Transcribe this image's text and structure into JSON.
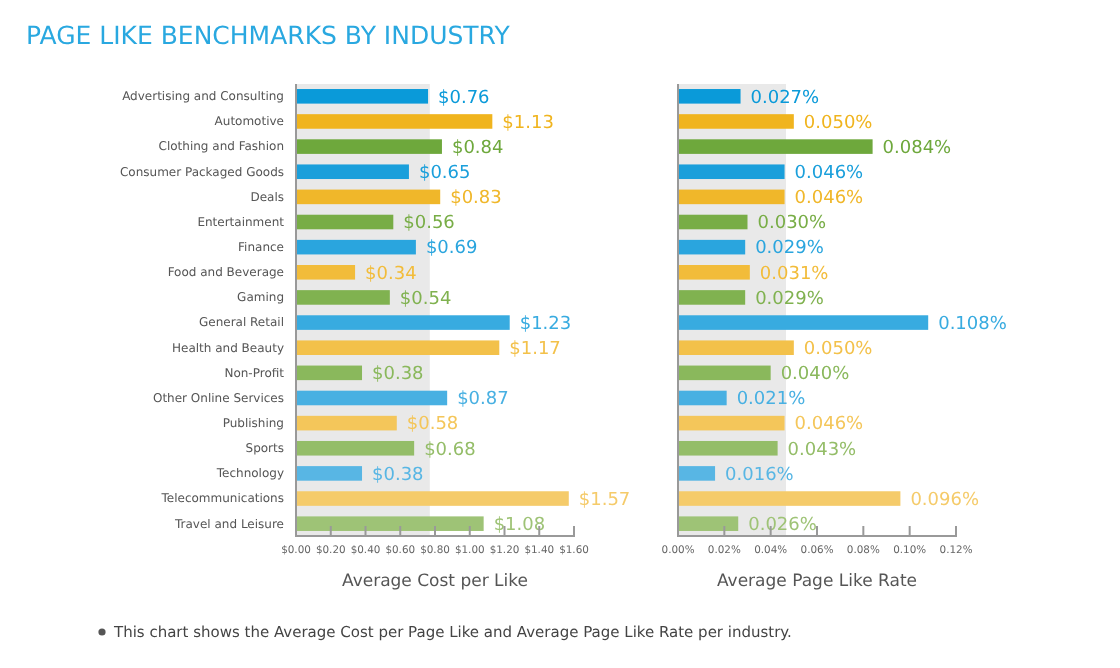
{
  "chart_data": [
    {
      "type": "bar",
      "orientation": "horizontal",
      "title": "PAGE LIKE BENCHMARKS BY INDUSTRY",
      "xlabel": "Average Cost per Like",
      "categories": [
        "Advertising and Consulting",
        "Automotive",
        "Clothing and Fashion",
        "Consumer Packaged Goods",
        "Deals",
        "Entertainment",
        "Finance",
        "Food and Beverage",
        "Gaming",
        "General Retail",
        "Health and Beauty",
        "Non-Profit",
        "Other Online Services",
        "Publishing",
        "Sports",
        "Technology",
        "Telecommunications",
        "Travel and Leisure"
      ],
      "values": [
        0.76,
        1.13,
        0.84,
        0.65,
        0.83,
        0.56,
        0.69,
        0.34,
        0.54,
        1.23,
        1.17,
        0.38,
        0.87,
        0.58,
        0.68,
        0.38,
        1.57,
        1.08
      ],
      "value_labels": [
        "$0.76",
        "$1.13",
        "$0.84",
        "$0.65",
        "$0.83",
        "$0.56",
        "$0.69",
        "$0.34",
        "$0.54",
        "$1.23",
        "$1.17",
        "$0.38",
        "$0.87",
        "$0.58",
        "$0.68",
        "$0.38",
        "$1.57",
        "$1.08"
      ],
      "colors": [
        "#0a9ad9",
        "#f0b41e",
        "#6ea83c",
        "#1a9fdb",
        "#f0b72a",
        "#78ad46",
        "#2aa5de",
        "#f2bc3a",
        "#80b250",
        "#38abe0",
        "#f3c14a",
        "#8ab85c",
        "#48b0e2",
        "#f4c65a",
        "#94bd68",
        "#58b6e4",
        "#f5cb6a",
        "#9ec376"
      ],
      "xlim": [
        0,
        1.6
      ],
      "xticks": [
        {
          "value": 0,
          "label": "$0.00"
        },
        {
          "value": 0.2,
          "label": "$0.20"
        },
        {
          "value": 0.4,
          "label": "$0.40"
        },
        {
          "value": 0.6,
          "label": "$0.60"
        },
        {
          "value": 0.8,
          "label": "$0.80"
        },
        {
          "value": 1.0,
          "label": "$1.00"
        },
        {
          "value": 1.2,
          "label": "$1.20"
        },
        {
          "value": 1.4,
          "label": "$1.40"
        },
        {
          "value": 1.6,
          "label": "$1.60"
        }
      ],
      "bands": [
        {
          "axis": "x",
          "from": 0,
          "to": 0.77,
          "color": "#e9e9e9"
        }
      ],
      "annotations": [
        "This chart shows the Average Cost per Page Like and Average Page Like Rate per industry."
      ]
    },
    {
      "type": "bar",
      "orientation": "horizontal",
      "xlabel": "Average Page Like Rate",
      "categories": [
        null,
        null,
        null,
        null,
        null,
        null,
        null,
        null,
        null,
        null,
        null,
        null,
        null,
        null,
        null,
        null,
        null,
        null
      ],
      "values": [
        0.027,
        0.05,
        0.084,
        0.046,
        0.046,
        0.03,
        0.029,
        0.031,
        0.029,
        0.108,
        0.05,
        0.04,
        0.021,
        0.046,
        0.043,
        0.016,
        0.096,
        0.026
      ],
      "value_labels": [
        "0.027%",
        "0.050%",
        "0.084%",
        "0.046%",
        "0.046%",
        "0.030%",
        "0.029%",
        "0.031%",
        "0.029%",
        "0.108%",
        "0.050%",
        "0.040%",
        "0.021%",
        "0.046%",
        "0.043%",
        "0.016%",
        "0.096%",
        "0.026%"
      ],
      "colors": [
        "#0a9ad9",
        "#f0b41e",
        "#6ea83c",
        "#1a9fdb",
        "#f0b72a",
        "#78ad46",
        "#2aa5de",
        "#f2bc3a",
        "#80b250",
        "#38abe0",
        "#f3c14a",
        "#8ab85c",
        "#48b0e2",
        "#f4c65a",
        "#94bd68",
        "#58b6e4",
        "#f5cb6a",
        "#9ec376"
      ],
      "xlim": [
        0,
        0.12
      ],
      "xticks": [
        {
          "value": 0,
          "label": "0.00%"
        },
        {
          "value": 0.02,
          "label": "0.02%"
        },
        {
          "value": 0.04,
          "label": "0.04%"
        },
        {
          "value": 0.06,
          "label": "0.06%"
        },
        {
          "value": 0.08,
          "label": "0.08%"
        },
        {
          "value": 0.1,
          "label": "0.10%"
        },
        {
          "value": 0.12,
          "label": "0.12%"
        }
      ],
      "bands": [
        {
          "axis": "x",
          "from": 0,
          "to": 0.0466,
          "color": "#e9e9e9"
        }
      ]
    }
  ]
}
